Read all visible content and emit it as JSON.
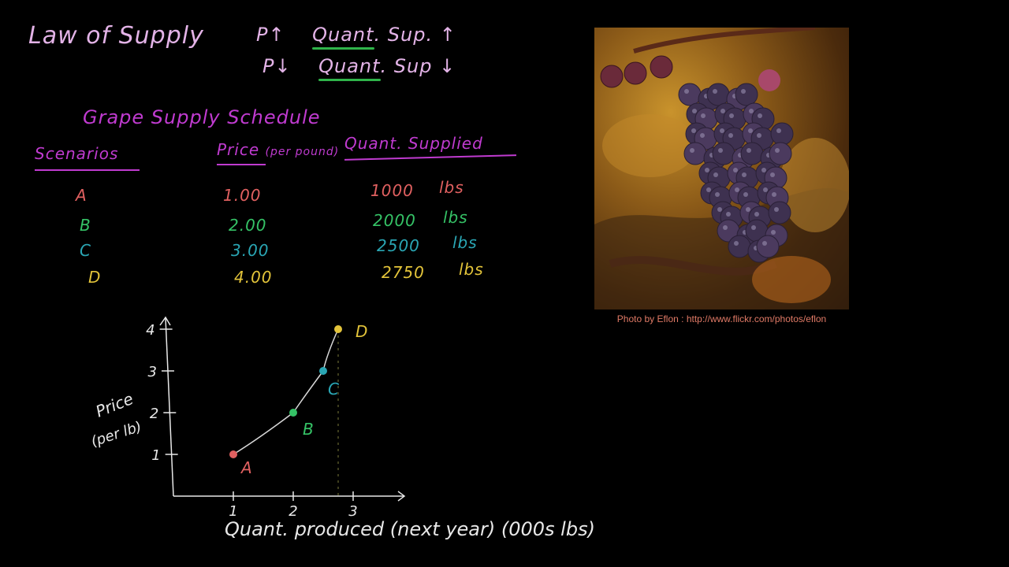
{
  "header": {
    "title": "Law of Supply",
    "rule_up": {
      "p": "P↑",
      "word": "Quant",
      "rest": ". Sup. ↑"
    },
    "rule_down": {
      "p": "P↓",
      "word": "Quant",
      "rest": ". Sup ↓"
    }
  },
  "schedule": {
    "title": "Grape Supply Schedule",
    "columns": {
      "scenarios": "Scenarios",
      "price": "Price",
      "price_unit": "(per pound)",
      "quantity": "Quant. Supplied"
    },
    "rows": [
      {
        "scenario": "A",
        "price": "1.00",
        "qty": "1000",
        "unit": "lbs",
        "color": "#e06060"
      },
      {
        "scenario": "B",
        "price": "2.00",
        "qty": "2000",
        "unit": "lbs",
        "color": "#35c266"
      },
      {
        "scenario": "C",
        "price": "3.00",
        "qty": "2500",
        "unit": "lbs",
        "color": "#2aa6b4"
      },
      {
        "scenario": "D",
        "price": "4.00",
        "qty": "2750",
        "unit": "lbs",
        "color": "#e3c43a"
      }
    ]
  },
  "photo": {
    "credit": "Photo by Eflon : http://www.flickr.com/photos/eflon",
    "subject": "grapes-photo"
  },
  "chart_data": {
    "type": "line",
    "xlabel": "Quant. produced (next year) (000s lbs)",
    "ylabel": "Price",
    "ylabel_unit": "(per lb)",
    "x_ticks": [
      "1",
      "2",
      "3"
    ],
    "y_ticks": [
      "1",
      "2",
      "3",
      "4"
    ],
    "xlim": [
      0,
      3.2
    ],
    "ylim": [
      0,
      4.2
    ],
    "series": [
      {
        "points": [
          {
            "label": "A",
            "x": 1.0,
            "y": 1.0,
            "color": "#e06060"
          },
          {
            "label": "B",
            "x": 2.0,
            "y": 2.0,
            "color": "#35c266"
          },
          {
            "label": "C",
            "x": 2.5,
            "y": 3.0,
            "color": "#2aa6b4"
          },
          {
            "label": "D",
            "x": 2.75,
            "y": 4.0,
            "color": "#e3c43a"
          }
        ]
      }
    ]
  }
}
